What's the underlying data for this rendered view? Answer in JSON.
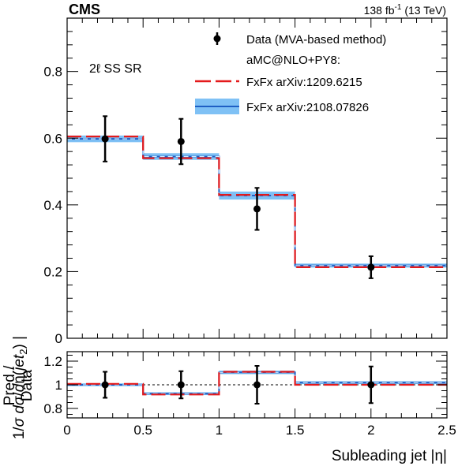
{
  "header": {
    "experiment": "CMS",
    "lumi_prefix": "138 fb",
    "lumi_exp": "-1",
    "lumi_suffix": " (13 TeV)"
  },
  "region_label": "2ℓ SS SR",
  "legend": {
    "data": "Data (MVA-based method)",
    "group": "aMC@NLO+PY8:",
    "pred1": "FxFx arXiv:1209.6215",
    "pred2": "FxFx arXiv:2108.07826"
  },
  "colors": {
    "data": "#000000",
    "pred1": "#e41a1c",
    "pred2_line": "#1f5fc4",
    "pred2_band": "#7fc1f5",
    "pred2_dash": "#cfe9ff"
  },
  "chart_data": [
    {
      "type": "line",
      "panel": "main",
      "xlabel": "",
      "ylabel": "1/σ dσ/dη(jet2)",
      "xlim": [
        0,
        2.5
      ],
      "ylim": [
        0,
        0.96
      ],
      "x_ticks": [
        "0",
        "0.5",
        "1",
        "1.5",
        "2",
        "2.5"
      ],
      "y_ticks": [
        {
          "value": 0,
          "label": "0"
        },
        {
          "value": 0.2,
          "label": "0.2"
        },
        {
          "value": 0.4,
          "label": "0.4"
        },
        {
          "value": 0.6,
          "label": "0.6"
        },
        {
          "value": 0.8,
          "label": "0.8"
        }
      ],
      "bin_edges": [
        0,
        0.5,
        1.0,
        1.5,
        2.5
      ],
      "series": [
        {
          "name": "Data (MVA-based method)",
          "kind": "points",
          "x": [
            0.25,
            0.75,
            1.25,
            2.0
          ],
          "values": [
            0.598,
            0.59,
            0.388,
            0.213
          ],
          "err": [
            0.068,
            0.068,
            0.063,
            0.033
          ]
        },
        {
          "name": "FxFx arXiv:1209.6215",
          "kind": "step",
          "values": [
            0.605,
            0.54,
            0.43,
            0.213
          ]
        },
        {
          "name": "FxFx arXiv:2108.07826",
          "kind": "step_band",
          "values": [
            0.598,
            0.545,
            0.428,
            0.218
          ],
          "band_err": [
            0.01,
            0.01,
            0.012,
            0.006
          ]
        }
      ]
    },
    {
      "type": "line",
      "panel": "ratio",
      "xlabel": "Subleading jet |η|",
      "ylabel_line1": "Pred./",
      "ylabel_line2": "Data",
      "xlim": [
        0,
        2.5
      ],
      "ylim": [
        0.72,
        1.28
      ],
      "y_ticks": [
        {
          "value": 0.8,
          "label": "0.8"
        },
        {
          "value": 1.0,
          "label": "1"
        },
        {
          "value": 1.2,
          "label": "1.2"
        }
      ],
      "reference_line": 1.0,
      "series": [
        {
          "name": "Data (MVA-based method)",
          "kind": "points",
          "x": [
            0.25,
            0.75,
            1.25,
            2.0
          ],
          "values": [
            1.0,
            1.0,
            1.0,
            1.0
          ],
          "err": [
            0.11,
            0.115,
            0.16,
            0.155
          ]
        },
        {
          "name": "FxFx arXiv:1209.6215",
          "kind": "step",
          "values": [
            1.008,
            0.918,
            1.11,
            1.0
          ]
        },
        {
          "name": "FxFx arXiv:2108.07826",
          "kind": "step_band",
          "values": [
            1.0,
            0.925,
            1.105,
            1.018
          ],
          "band_err": [
            0.012,
            0.012,
            0.015,
            0.012
          ]
        }
      ]
    }
  ]
}
